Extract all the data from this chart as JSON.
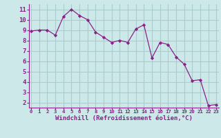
{
  "x": [
    0,
    1,
    2,
    3,
    4,
    5,
    6,
    7,
    8,
    9,
    10,
    11,
    12,
    13,
    14,
    15,
    16,
    17,
    18,
    19,
    20,
    21,
    22,
    23
  ],
  "y": [
    8.9,
    9.0,
    9.0,
    8.5,
    10.3,
    11.0,
    10.4,
    10.0,
    8.8,
    8.3,
    7.8,
    8.0,
    7.8,
    9.1,
    9.5,
    6.3,
    7.8,
    7.6,
    6.4,
    5.7,
    4.1,
    4.2,
    1.7,
    1.8
  ],
  "line_color": "#882288",
  "marker": "D",
  "marker_size": 2.2,
  "bg_color": "#cce8e8",
  "grid_color": "#aacccc",
  "xlabel": "Windchill (Refroidissement éolien,°C)",
  "xlabel_color": "#882288",
  "tick_color": "#882288",
  "axis_color": "#882288",
  "ylim": [
    1.5,
    11.5
  ],
  "xlim": [
    -0.3,
    23.3
  ],
  "yticks": [
    2,
    3,
    4,
    5,
    6,
    7,
    8,
    9,
    10,
    11
  ],
  "xticks": [
    0,
    1,
    2,
    3,
    4,
    5,
    6,
    7,
    8,
    9,
    10,
    11,
    12,
    13,
    14,
    15,
    16,
    17,
    18,
    19,
    20,
    21,
    22,
    23
  ],
  "xlabel_fontsize": 6.5,
  "tick_fontsize_x": 5.2,
  "tick_fontsize_y": 6.5
}
